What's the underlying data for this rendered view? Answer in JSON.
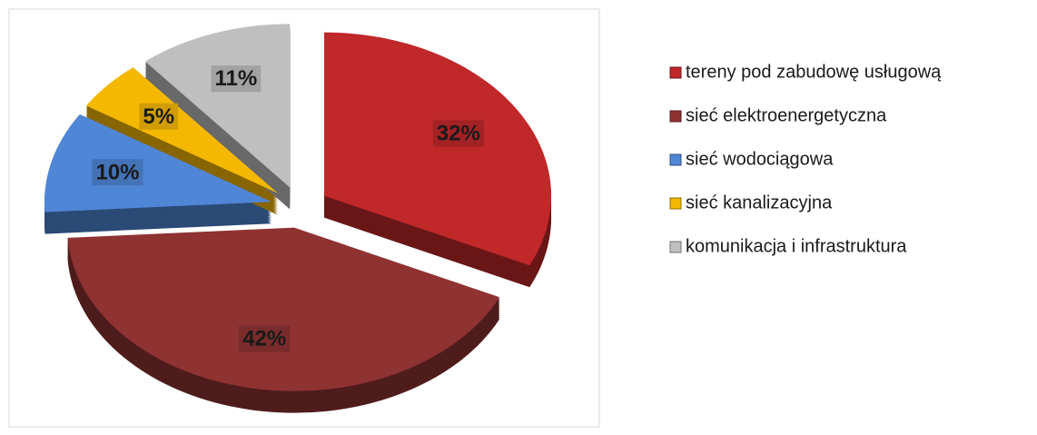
{
  "chart_data": {
    "type": "pie",
    "categories": [
      "tereny pod zabudowę usługową",
      "sieć elektroenergetyczna",
      "sieć wodociągowa",
      "sieć kanalizacyjna",
      "komunikacja i infrastruktura"
    ],
    "values": [
      32,
      42,
      10,
      5,
      11
    ],
    "value_labels": [
      "32%",
      "42%",
      "10%",
      "5%",
      "11%"
    ],
    "colors": [
      "#c0282a",
      "#8f3232",
      "#4f86d6",
      "#f5b800",
      "#bfbfbf"
    ],
    "legend": "right"
  }
}
